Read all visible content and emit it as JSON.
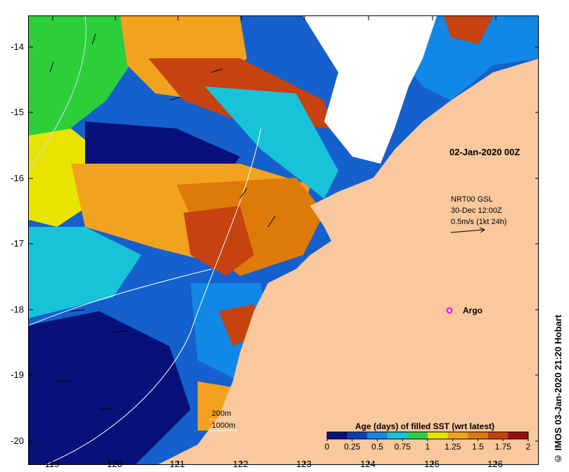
{
  "map": {
    "date_label": "02-Jan-2020 00Z",
    "current_info": {
      "line1": "NRT00 GSL",
      "line2": "30-Dec 12:00Z",
      "line3": "0.5m/s (1kt 24h)"
    },
    "argo_label": "Argo",
    "contours": [
      "200m",
      "1000m"
    ],
    "credit": "© IMOS 03-Jan-2020 21:20 Hobart",
    "colors": {
      "land": "#f9c89c",
      "no_data": "#ffffff",
      "argo_marker": "#ff00ff",
      "contour_200": "#d8d8ff",
      "contour_1000": "#ffffff"
    }
  },
  "axes": {
    "x_ticks": [
      "119",
      "120",
      "121",
      "122",
      "123",
      "124",
      "125",
      "126"
    ],
    "y_ticks": [
      "-14",
      "-15",
      "-16",
      "-17",
      "-18",
      "-19",
      "-20"
    ]
  },
  "colorbar": {
    "title": "Age (days) of filled SST (wrt latest)",
    "ticks": [
      "0",
      "0.25",
      "0.5",
      "0.75",
      "1",
      "1.25",
      "1.5",
      "1.75",
      "2"
    ],
    "colors": [
      "#08107a",
      "#0a3fb8",
      "#1188e6",
      "#18c2d8",
      "#2fce4f",
      "#e8e400",
      "#f2a21e",
      "#de7a0a",
      "#c6420e",
      "#980c0a"
    ]
  }
}
